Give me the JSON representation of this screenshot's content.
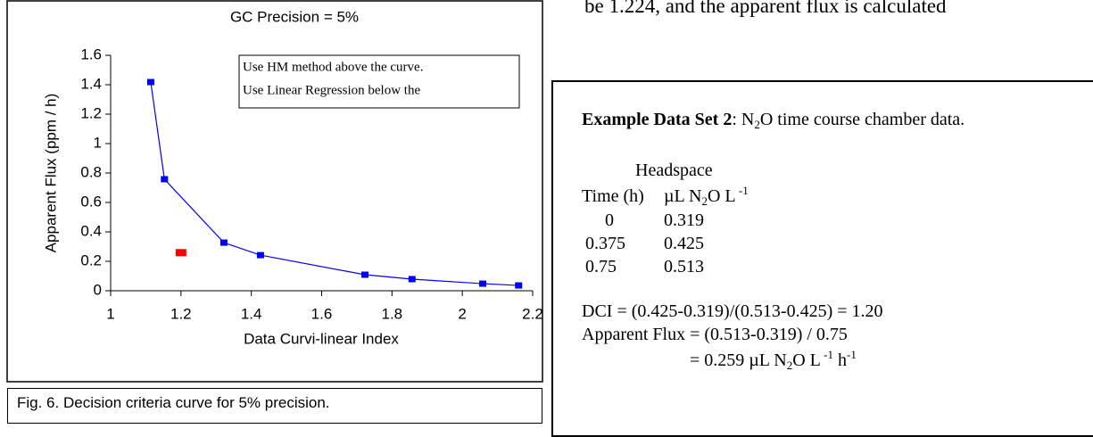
{
  "top_text": "be 1.224, and the apparent flux is calculated",
  "chart_data": {
    "type": "line",
    "title": "GC Precision = 5%",
    "xlabel": "Data Curvi-linear Index",
    "ylabel": "Apparent Flux (ppm / h)",
    "annotations": [
      "Use HM method above the curve.",
      "Use Linear Regression below the"
    ],
    "xlim": [
      1,
      2.2
    ],
    "xticks": [
      1,
      1.2,
      1.4,
      1.6,
      1.8,
      2,
      2.2
    ],
    "ylim": [
      0,
      1.6
    ],
    "yticks": [
      0,
      0.2,
      0.4,
      0.6,
      0.8,
      1,
      1.2,
      1.4,
      1.6
    ],
    "series": [
      {
        "color": "#0000ff",
        "line": true,
        "x": [
          1.114,
          1.153,
          1.322,
          1.426,
          1.723,
          1.857,
          2.058,
          2.16
        ],
        "values": [
          1.418,
          0.758,
          0.327,
          0.242,
          0.109,
          0.079,
          0.048,
          0.036
        ]
      },
      {
        "color": "#ff0000",
        "line": false,
        "x": [
          1.2
        ],
        "values": [
          0.259
        ]
      }
    ]
  },
  "caption": "Fig. 6.  Decision criteria curve for 5% precision.",
  "example": {
    "label": "Example Data Set 2",
    "intro": [
      ": N",
      "2",
      "O time course chamber data."
    ],
    "col_header": "Headspace",
    "time_header": "Time (h)",
    "unit": [
      "µL N",
      "2",
      "O L",
      " -1"
    ],
    "rows": [
      [
        0,
        0.319
      ],
      [
        0.375,
        0.425
      ],
      [
        0.75,
        0.513
      ]
    ],
    "dci": "DCI = (0.425-0.319)/(0.513-0.425) =  1.20",
    "flux": "Apparent Flux = (0.513-0.319) / 0.75",
    "flux_result": [
      "= 0.259 µL N",
      "2",
      "O L",
      " -1",
      "h",
      "-1"
    ]
  }
}
